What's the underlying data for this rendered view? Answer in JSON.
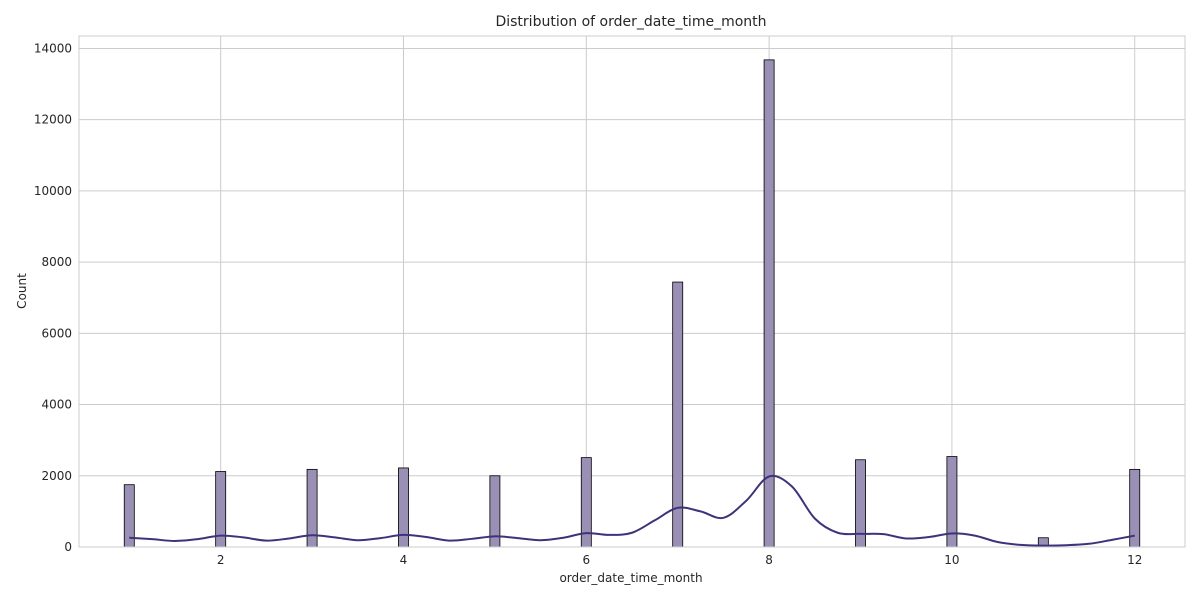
{
  "chart_data": {
    "type": "bar",
    "title": "Distribution of order_date_time_month",
    "xlabel": "order_date_time_month",
    "ylabel": "Count",
    "xlim": [
      0.45,
      12.55
    ],
    "ylim": [
      0,
      14350
    ],
    "xticks": [
      2,
      4,
      6,
      8,
      10,
      12
    ],
    "yticks": [
      0,
      2000,
      4000,
      6000,
      8000,
      10000,
      12000,
      14000
    ],
    "grid": true,
    "bar_color": "#9a90b6",
    "kde_color": "#3e337a",
    "bins": [
      {
        "x": 1,
        "value": 1750
      },
      {
        "x": 2,
        "value": 2120
      },
      {
        "x": 3,
        "value": 2180
      },
      {
        "x": 4,
        "value": 2220
      },
      {
        "x": 5,
        "value": 2000
      },
      {
        "x": 6,
        "value": 2510
      },
      {
        "x": 7,
        "value": 7440
      },
      {
        "x": 8,
        "value": 13680
      },
      {
        "x": 9,
        "value": 2450
      },
      {
        "x": 10,
        "value": 2540
      },
      {
        "x": 11,
        "value": 260
      },
      {
        "x": 12,
        "value": 2180
      }
    ],
    "kde": {
      "x": [
        1.0,
        1.25,
        1.5,
        1.75,
        2.0,
        2.25,
        2.5,
        2.75,
        3.0,
        3.25,
        3.5,
        3.75,
        4.0,
        4.25,
        4.5,
        4.75,
        5.0,
        5.25,
        5.5,
        5.75,
        6.0,
        6.25,
        6.5,
        6.75,
        7.0,
        7.25,
        7.5,
        7.75,
        8.0,
        8.25,
        8.5,
        8.75,
        9.0,
        9.25,
        9.5,
        9.75,
        10.0,
        10.25,
        10.5,
        10.75,
        11.0,
        11.25,
        11.5,
        11.75,
        12.0
      ],
      "y": [
        260,
        220,
        170,
        220,
        320,
        270,
        180,
        240,
        330,
        270,
        190,
        250,
        340,
        280,
        180,
        230,
        300,
        250,
        190,
        260,
        390,
        340,
        400,
        750,
        1100,
        1000,
        820,
        1300,
        1980,
        1700,
        800,
        400,
        370,
        360,
        240,
        280,
        380,
        320,
        140,
        60,
        40,
        50,
        90,
        200,
        320
      ]
    }
  }
}
